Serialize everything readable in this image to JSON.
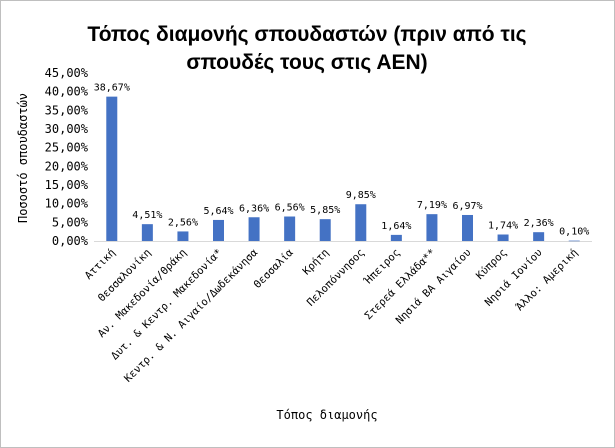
{
  "chart_data": {
    "type": "bar",
    "title_lines": [
      "Τόπος διαμονής σπουδαστών (πριν από τις",
      "σπουδές τους στις ΑΕΝ)"
    ],
    "xlabel": "Τόπος διαμονής",
    "ylabel": "Ποσοστό σπουδαστών",
    "ylim": [
      0,
      45
    ],
    "yticks": [
      "0,00%",
      "5,00%",
      "10,00%",
      "15,00%",
      "20,00%",
      "25,00%",
      "30,00%",
      "35,00%",
      "40,00%",
      "45,00%"
    ],
    "grid": false,
    "legend": "none",
    "bar_color": "#4472C4",
    "categories": [
      "Αττική",
      "Θεσσαλονίκη",
      "Αν. Μακεδονία/Θράκη",
      "Δυτ. & Κεντρ. Μακεδονία*",
      "Κεντρ. & Ν. Αιγαίο/Δωδεκάνησα",
      "Θεσσαλία",
      "Κρήτη",
      "Πελοπόννησος",
      "Ήπειρος",
      "Στερεά Ελλάδα**",
      "Νησιά ΒΑ Αιγαίου",
      "Κύπρος",
      "Νησιά Ιονίου",
      "Άλλο: Αμερική"
    ],
    "values": [
      38.67,
      4.51,
      2.56,
      5.64,
      6.36,
      6.56,
      5.85,
      9.85,
      1.64,
      7.19,
      6.97,
      1.74,
      2.36,
      0.1
    ],
    "data_labels": [
      "38,67%",
      "4,51%",
      "2,56%",
      "5,64%",
      "6,36%",
      "6,56%",
      "5,85%",
      "9,85%",
      "1,64%",
      "7,19%",
      "6,97%",
      "1,74%",
      "2,36%",
      "0,10%"
    ]
  }
}
